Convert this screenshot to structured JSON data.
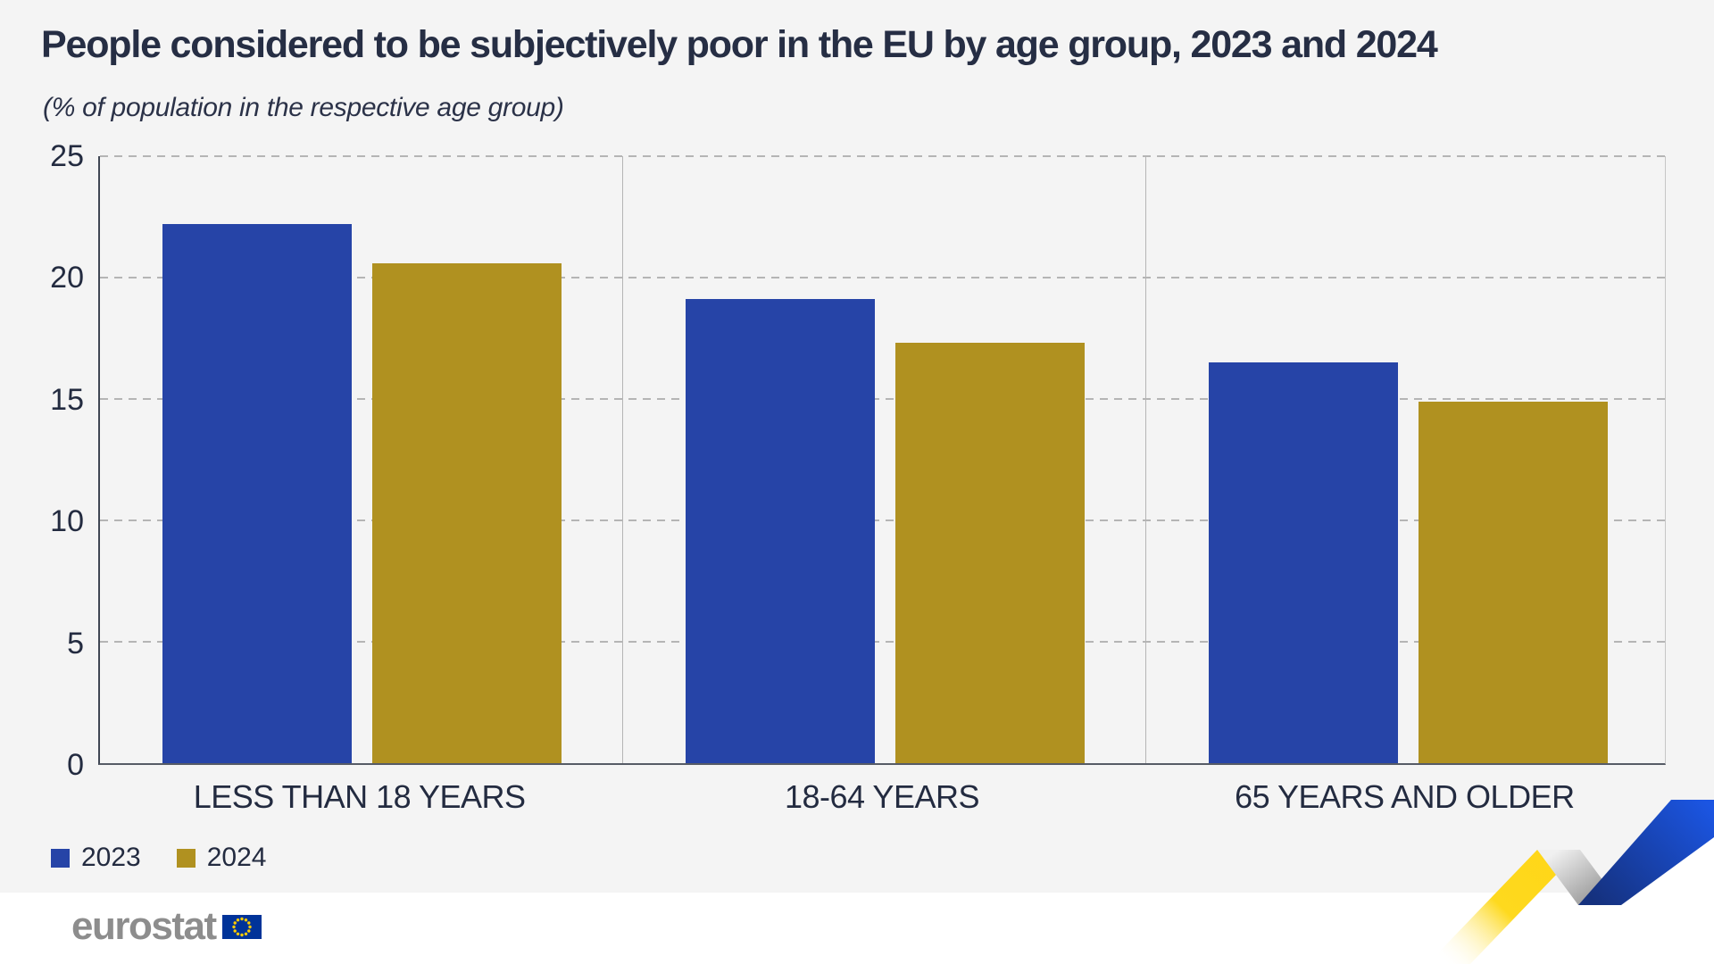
{
  "title": "People considered to be subjectively poor in the EU by age group, 2023 and 2024",
  "subtitle": "(% of population in the respective age group)",
  "chart_data": {
    "type": "bar",
    "categories": [
      "LESS THAN 18 YEARS",
      "18-64 YEARS",
      "65 YEARS AND OLDER"
    ],
    "series": [
      {
        "name": "2023",
        "color": "#2644a7",
        "values": [
          22.2,
          19.1,
          16.5
        ]
      },
      {
        "name": "2024",
        "color": "#b09120",
        "values": [
          20.6,
          17.3,
          14.9
        ]
      }
    ],
    "ylim": [
      0,
      25
    ],
    "yticks": [
      0,
      5,
      10,
      15,
      20,
      25
    ],
    "grid": "horizontal-dashed",
    "legend_position": "bottom-left",
    "title": "People considered to be subjectively poor in the EU by age group, 2023 and 2024",
    "ylabel": "",
    "xlabel": ""
  },
  "legend": {
    "items": [
      {
        "label": "2023",
        "color": "#2644a7"
      },
      {
        "label": "2024",
        "color": "#b09120"
      }
    ]
  },
  "footer": {
    "logo_text": "eurostat",
    "flag_icon": "eu-flag-icon"
  },
  "decoration": {
    "name": "eurostat-ribbon-zigzag",
    "yellow": "#ffd617",
    "blue_bright": "#1b55e2",
    "blue_dark": "#15317e"
  },
  "colors": {
    "background": "#f4f4f4",
    "footer_background": "#ffffff",
    "text": "#242c42",
    "gridline": "#b5b5b5",
    "axis": "#3f4653"
  }
}
